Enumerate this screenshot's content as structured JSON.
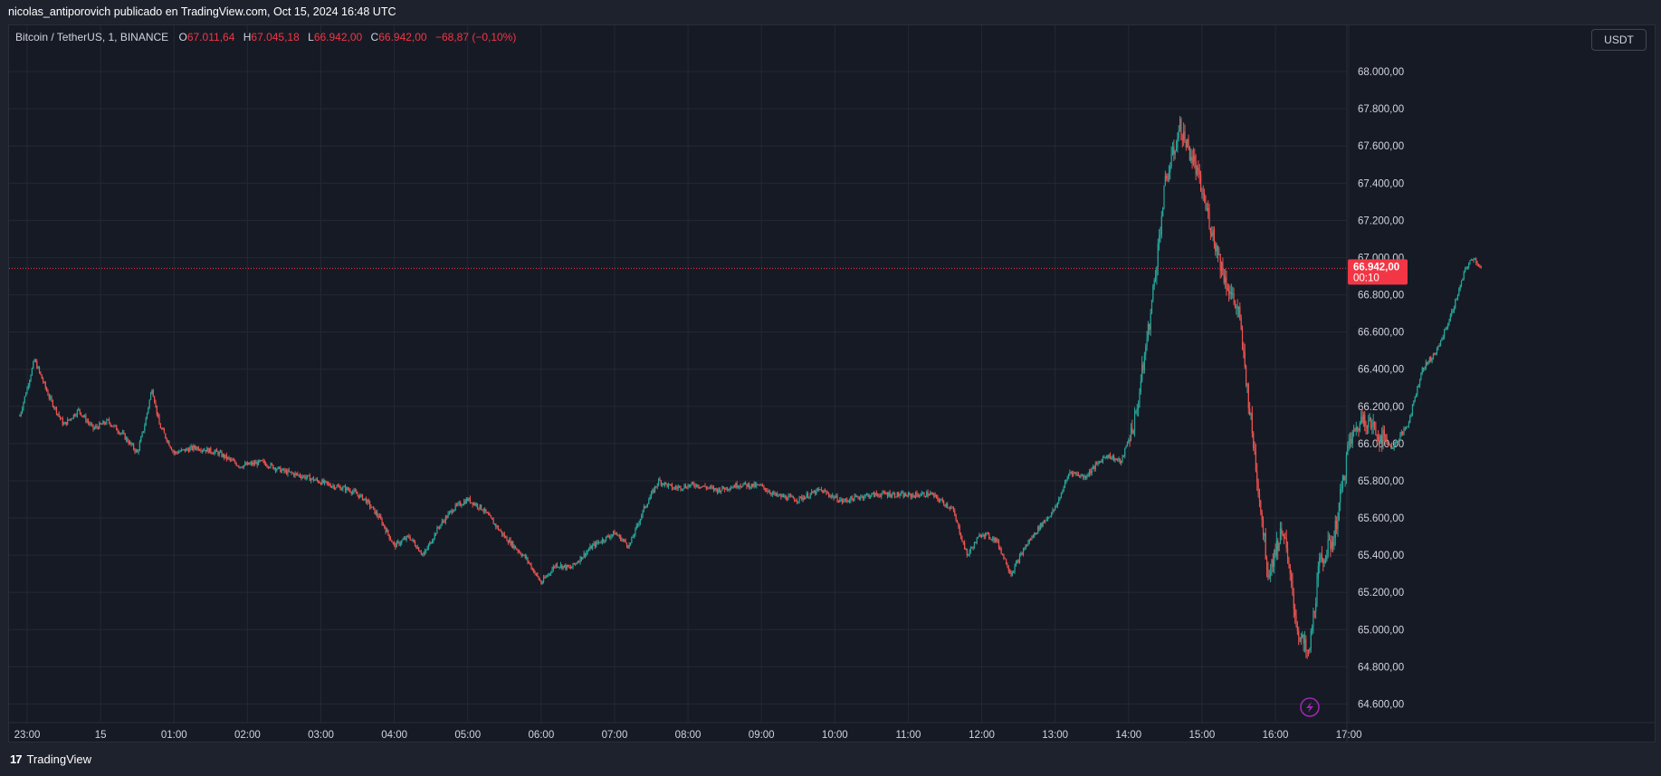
{
  "header": {
    "publish_line": "nicolas_antiporovich publicado en TradingView.com, Oct 15, 2024 16:48 UTC"
  },
  "legend": {
    "symbol": "Bitcoin / TetherUS, 1, BINANCE",
    "open_label": "O",
    "open": "67.011,64",
    "high_label": "H",
    "high": "67.045,18",
    "low_label": "L",
    "low": "66.942,00",
    "close_label": "C",
    "close": "66.942,00",
    "change": "−68,87 (−0,10%)"
  },
  "currency_button": "USDT",
  "price_tag": {
    "price": "66.942,00",
    "countdown": "00:10"
  },
  "footer": {
    "brand": "TradingView",
    "logo": "17"
  },
  "colors": {
    "up": "#26a69a",
    "down": "#ef5350",
    "background": "#161a25",
    "grid": "#242833",
    "price_line": "#f23645",
    "alert_icon": "#9c27b0"
  },
  "icons": {
    "alert": "lightning-alert-icon",
    "logo": "tradingview-logo-icon"
  },
  "chart_data": {
    "type": "candlestick",
    "grid": true,
    "ylim": [
      64500,
      68200
    ],
    "y_ticks": [
      64600,
      64800,
      65000,
      65200,
      65400,
      65600,
      65800,
      66000,
      66200,
      66400,
      66600,
      66800,
      67000,
      67200,
      67400,
      67600,
      67800,
      68000
    ],
    "y_tick_labels": [
      "64.600,00",
      "64.800,00",
      "65.000,00",
      "65.200,00",
      "65.400,00",
      "65.600,00",
      "65.800,00",
      "66.000,00",
      "66.200,00",
      "66.400,00",
      "66.600,00",
      "66.800,00",
      "67.000,00",
      "67.200,00",
      "67.400,00",
      "67.600,00",
      "67.800,00",
      "68.000,00"
    ],
    "x_tick_labels": [
      "23:00",
      "15",
      "01:00",
      "02:00",
      "03:00",
      "04:00",
      "05:00",
      "06:00",
      "07:00",
      "08:00",
      "09:00",
      "10:00",
      "11:00",
      "12:00",
      "13:00",
      "14:00",
      "15:00",
      "16:00",
      "17:00"
    ],
    "x_tick_hours": [
      23,
      24,
      25,
      26,
      27,
      28,
      29,
      30,
      31,
      32,
      33,
      34,
      35,
      36,
      37,
      38,
      39,
      40,
      41
    ],
    "last_price": 66942,
    "series": [
      {
        "points": [
          [
            22.9,
            66150
          ],
          [
            23.1,
            66450
          ],
          [
            23.3,
            66250
          ],
          [
            23.5,
            66100
          ],
          [
            23.7,
            66180
          ],
          [
            23.9,
            66080
          ],
          [
            24.1,
            66120
          ],
          [
            24.3,
            66050
          ],
          [
            24.5,
            65950
          ],
          [
            24.6,
            66100
          ],
          [
            24.7,
            66300
          ],
          [
            24.8,
            66100
          ],
          [
            25.0,
            65950
          ],
          [
            25.3,
            65980
          ],
          [
            25.6,
            65950
          ],
          [
            25.9,
            65880
          ],
          [
            26.2,
            65900
          ],
          [
            26.5,
            65850
          ],
          [
            26.8,
            65820
          ],
          [
            27.1,
            65780
          ],
          [
            27.4,
            65750
          ],
          [
            27.6,
            65700
          ],
          [
            27.8,
            65600
          ],
          [
            28.0,
            65450
          ],
          [
            28.2,
            65500
          ],
          [
            28.4,
            65400
          ],
          [
            28.6,
            65550
          ],
          [
            28.8,
            65650
          ],
          [
            29.0,
            65700
          ],
          [
            29.2,
            65650
          ],
          [
            29.5,
            65500
          ],
          [
            29.8,
            65380
          ],
          [
            30.0,
            65250
          ],
          [
            30.2,
            65350
          ],
          [
            30.4,
            65330
          ],
          [
            30.7,
            65450
          ],
          [
            31.0,
            65520
          ],
          [
            31.2,
            65450
          ],
          [
            31.4,
            65650
          ],
          [
            31.6,
            65800
          ],
          [
            31.8,
            65760
          ],
          [
            32.1,
            65780
          ],
          [
            32.4,
            65750
          ],
          [
            32.7,
            65780
          ],
          [
            33.0,
            65770
          ],
          [
            33.2,
            65720
          ],
          [
            33.5,
            65700
          ],
          [
            33.8,
            65750
          ],
          [
            34.1,
            65690
          ],
          [
            34.4,
            65720
          ],
          [
            34.7,
            65730
          ],
          [
            35.0,
            65720
          ],
          [
            35.3,
            65730
          ],
          [
            35.6,
            65650
          ],
          [
            35.8,
            65400
          ],
          [
            36.0,
            65520
          ],
          [
            36.2,
            65480
          ],
          [
            36.4,
            65300
          ],
          [
            36.6,
            65450
          ],
          [
            36.8,
            65560
          ],
          [
            37.0,
            65650
          ],
          [
            37.2,
            65850
          ],
          [
            37.4,
            65820
          ],
          [
            37.7,
            65940
          ],
          [
            37.9,
            65900
          ],
          [
            38.1,
            66150
          ],
          [
            38.3,
            66700
          ],
          [
            38.5,
            67400
          ],
          [
            38.7,
            67700
          ],
          [
            38.9,
            67500
          ],
          [
            39.1,
            67200
          ],
          [
            39.3,
            66900
          ],
          [
            39.5,
            66700
          ],
          [
            39.7,
            66000
          ],
          [
            39.9,
            65300
          ],
          [
            40.1,
            65550
          ],
          [
            40.3,
            65000
          ],
          [
            40.45,
            64850
          ],
          [
            40.6,
            65350
          ],
          [
            40.8,
            65500
          ],
          [
            41.0,
            66000
          ],
          [
            41.2,
            66150
          ],
          [
            41.4,
            66050
          ],
          [
            41.6,
            65980
          ],
          [
            41.8,
            66100
          ],
          [
            42.0,
            66400
          ],
          [
            42.2,
            66500
          ],
          [
            42.4,
            66700
          ],
          [
            42.6,
            66950
          ],
          [
            42.7,
            67000
          ],
          [
            42.8,
            66942
          ]
        ]
      }
    ]
  }
}
